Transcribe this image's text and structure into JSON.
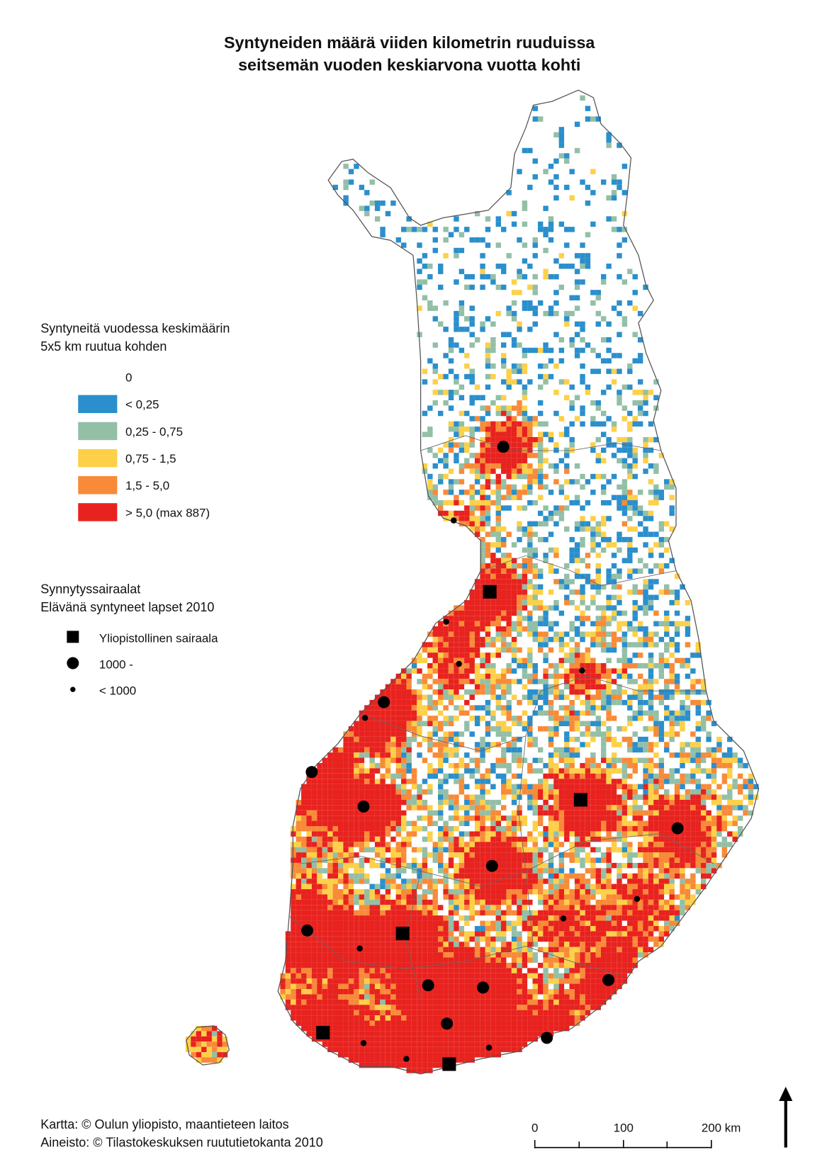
{
  "title": {
    "line1": "Syntyneiden määrä viiden kilometrin ruuduissa",
    "line2": "seitsemän vuoden keskiarvona vuotta kohti"
  },
  "legend": {
    "title_lines": [
      "Syntyneitä vuodessa keskimäärin",
      "5x5 km ruutua kohden"
    ],
    "items": [
      {
        "label": "0"
      },
      {
        "label": "< 0,25",
        "color": "#2a8fcc"
      },
      {
        "label": "0,25 - 0,75",
        "color": "#93bfa6"
      },
      {
        "label": "0,75 - 1,5",
        "color": "#fdd048"
      },
      {
        "label": "1,5 - 5,0",
        "color": "#f88a38"
      },
      {
        "label": "> 5,0   (max 887)",
        "color": "#e8221e"
      }
    ]
  },
  "hospital_legend": {
    "title_lines": [
      "Synnytyssairaalat",
      "Elävänä syntyneet lapset 2010"
    ],
    "items": [
      {
        "label": "Yliopistollinen sairaala"
      },
      {
        "label": "1000 -"
      },
      {
        "label": "< 1000"
      }
    ]
  },
  "credits": [
    "Kartta: © Oulun yliopisto, maantieteen laitos",
    "Aineisto: © Tilastokeskuksen ruututietokanta 2010"
  ],
  "scale_bar": {
    "labels": [
      "0",
      "100",
      "200 km"
    ]
  }
}
